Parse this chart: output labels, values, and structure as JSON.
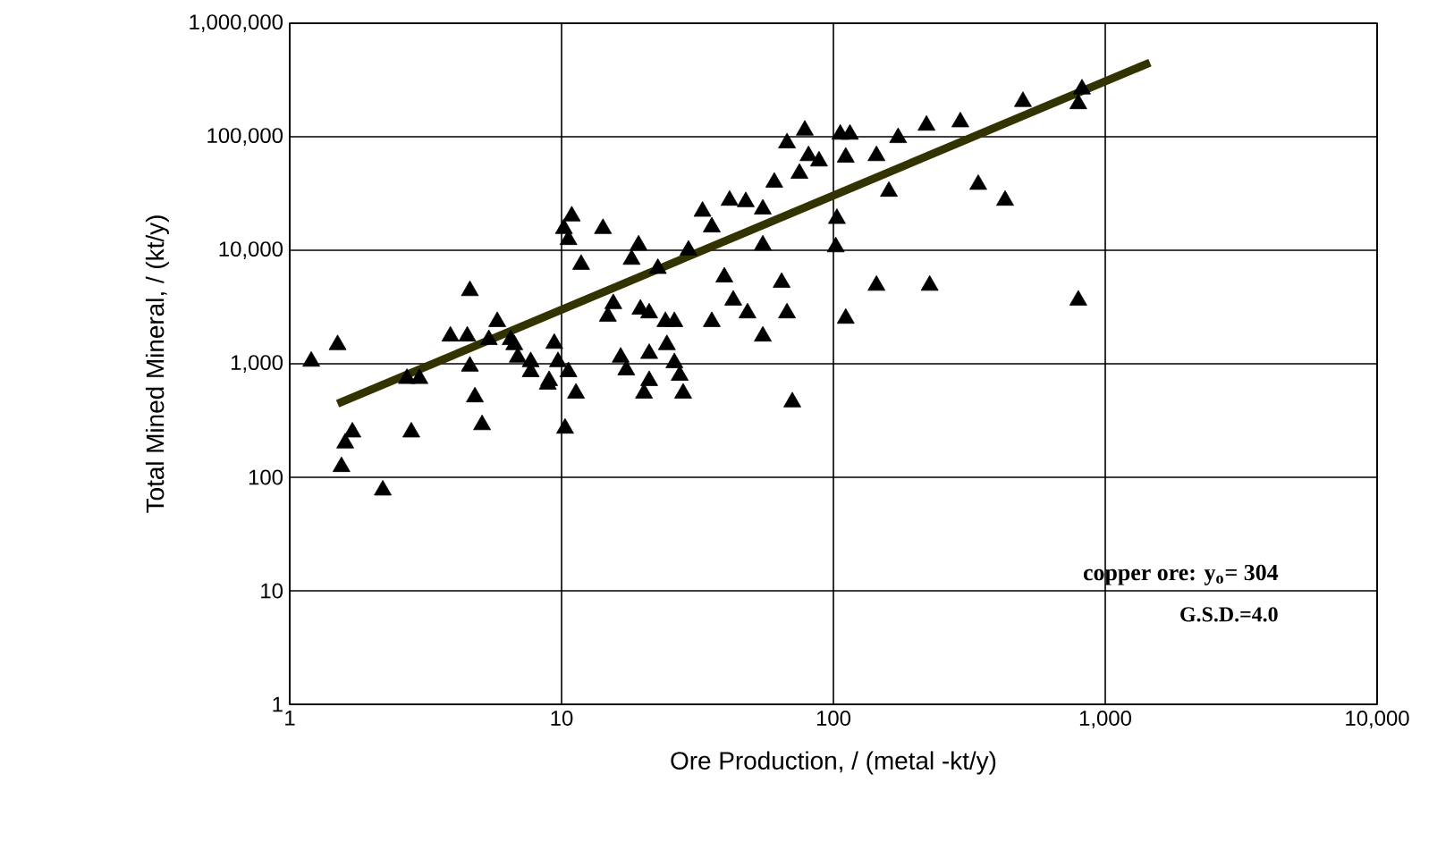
{
  "chart_data": {
    "type": "scatter",
    "xlabel": "Ore Production, / (metal -kt/y)",
    "ylabel": "Total Mined Mineral, / (kt/y)",
    "log": "xy",
    "grid": true,
    "xlim": [
      1,
      10000
    ],
    "ylim": [
      1,
      1000000
    ],
    "xticks": [
      1,
      10,
      100,
      {
        "value": 1000,
        "label": "1,000"
      },
      {
        "value": 10000,
        "label": "10,000"
      }
    ],
    "yticks": [
      1,
      10,
      100,
      {
        "value": 1000,
        "label": "1,000"
      },
      {
        "value": 10000,
        "label": "10,000"
      },
      {
        "value": 100000,
        "label": "100,000"
      },
      {
        "value": 1000000,
        "label": "1,000,000"
      }
    ],
    "annotations": [
      "copper ore:  y$_{o}$= 304",
      "G.S.D.=4.0"
    ],
    "series": [
      {
        "marker": "triangle",
        "color": "#000000",
        "x": [
          1.2,
          1.5,
          1.55,
          1.7,
          1.6,
          2.2,
          2.8,
          2.7,
          3.0,
          3.9,
          4.6,
          4.5,
          4.6,
          4.8,
          5.1,
          5.8,
          5.4,
          6.5,
          6.9,
          7.7,
          8.9,
          9.7,
          10.6,
          10.3,
          11.3,
          10.2,
          10.9,
          10.6,
          11.8,
          14.2,
          19.2,
          18.1,
          22.6,
          29.3,
          33,
          35.7,
          41.5,
          47.6,
          55,
          55,
          60.6,
          67.5,
          75,
          78.5,
          81,
          88.5,
          106,
          115,
          111,
          103,
          102,
          144,
          160,
          173,
          220,
          293,
          498,
          821,
          796,
          341,
          428,
          144,
          226,
          796,
          15.5,
          14.8,
          19.5,
          21,
          24.1,
          26,
          16.5,
          17.3,
          21,
          21,
          24.4,
          26,
          27.2,
          28,
          35.7,
          39.7,
          42.8,
          48.3,
          55,
          64.5,
          67.5,
          70.6,
          111,
          6.7,
          7.7,
          9.0,
          9.4,
          20.1
        ],
        "values": [
          1050,
          1470,
          124,
          250,
          200,
          77,
          250,
          740,
          740,
          1750,
          4400,
          1750,
          950,
          510,
          290,
          2350,
          1630,
          1630,
          1140,
          850,
          660,
          1040,
          850,
          270,
          550,
          15500,
          20000,
          12400,
          7500,
          15500,
          11100,
          8300,
          6900,
          10000,
          22000,
          16000,
          27500,
          26700,
          23000,
          11100,
          39700,
          88000,
          47500,
          114000,
          68000,
          61000,
          105000,
          105000,
          66000,
          19000,
          10700,
          68000,
          33000,
          98000,
          126000,
          135000,
          204000,
          263000,
          195000,
          38000,
          27500,
          4900,
          4900,
          3630,
          3380,
          2620,
          3020,
          2800,
          2350,
          2350,
          1140,
          880,
          1230,
          710,
          1470,
          1020,
          790,
          550,
          2350,
          5800,
          3630,
          2800,
          1750,
          5200,
          2800,
          460,
          2510,
          1470,
          1040,
          710,
          1510,
          550
        ]
      },
      {
        "type": "line",
        "marker": "none",
        "color": "#333300",
        "x": [
          1.5,
          1460
        ],
        "values": [
          445,
          450000
        ]
      }
    ]
  }
}
